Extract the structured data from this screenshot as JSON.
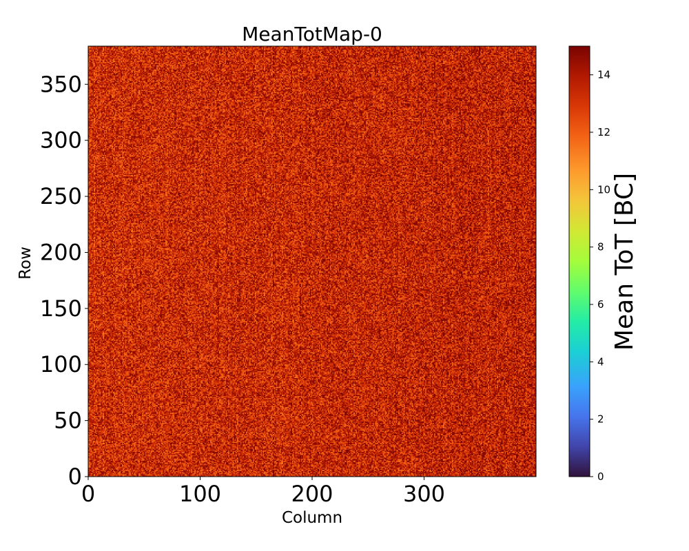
{
  "chart_data": {
    "type": "heatmap",
    "title": "MeanTotMap-0",
    "xlabel": "Column",
    "ylabel": "Row",
    "xlim": [
      0,
      400
    ],
    "ylim": [
      0,
      384
    ],
    "n_columns": 400,
    "n_rows": 384,
    "xticks": [
      0,
      100,
      200,
      300
    ],
    "yticks": [
      0,
      50,
      100,
      150,
      200,
      250,
      300,
      350
    ],
    "value_range": [
      0,
      15
    ],
    "typical_value_range": [
      11,
      15
    ],
    "colormap": "turbo",
    "colorbar": {
      "label": "Mean ToT [BC]",
      "range": [
        0,
        15
      ],
      "ticks": [
        0,
        2,
        4,
        6,
        8,
        10,
        12,
        14
      ]
    }
  }
}
